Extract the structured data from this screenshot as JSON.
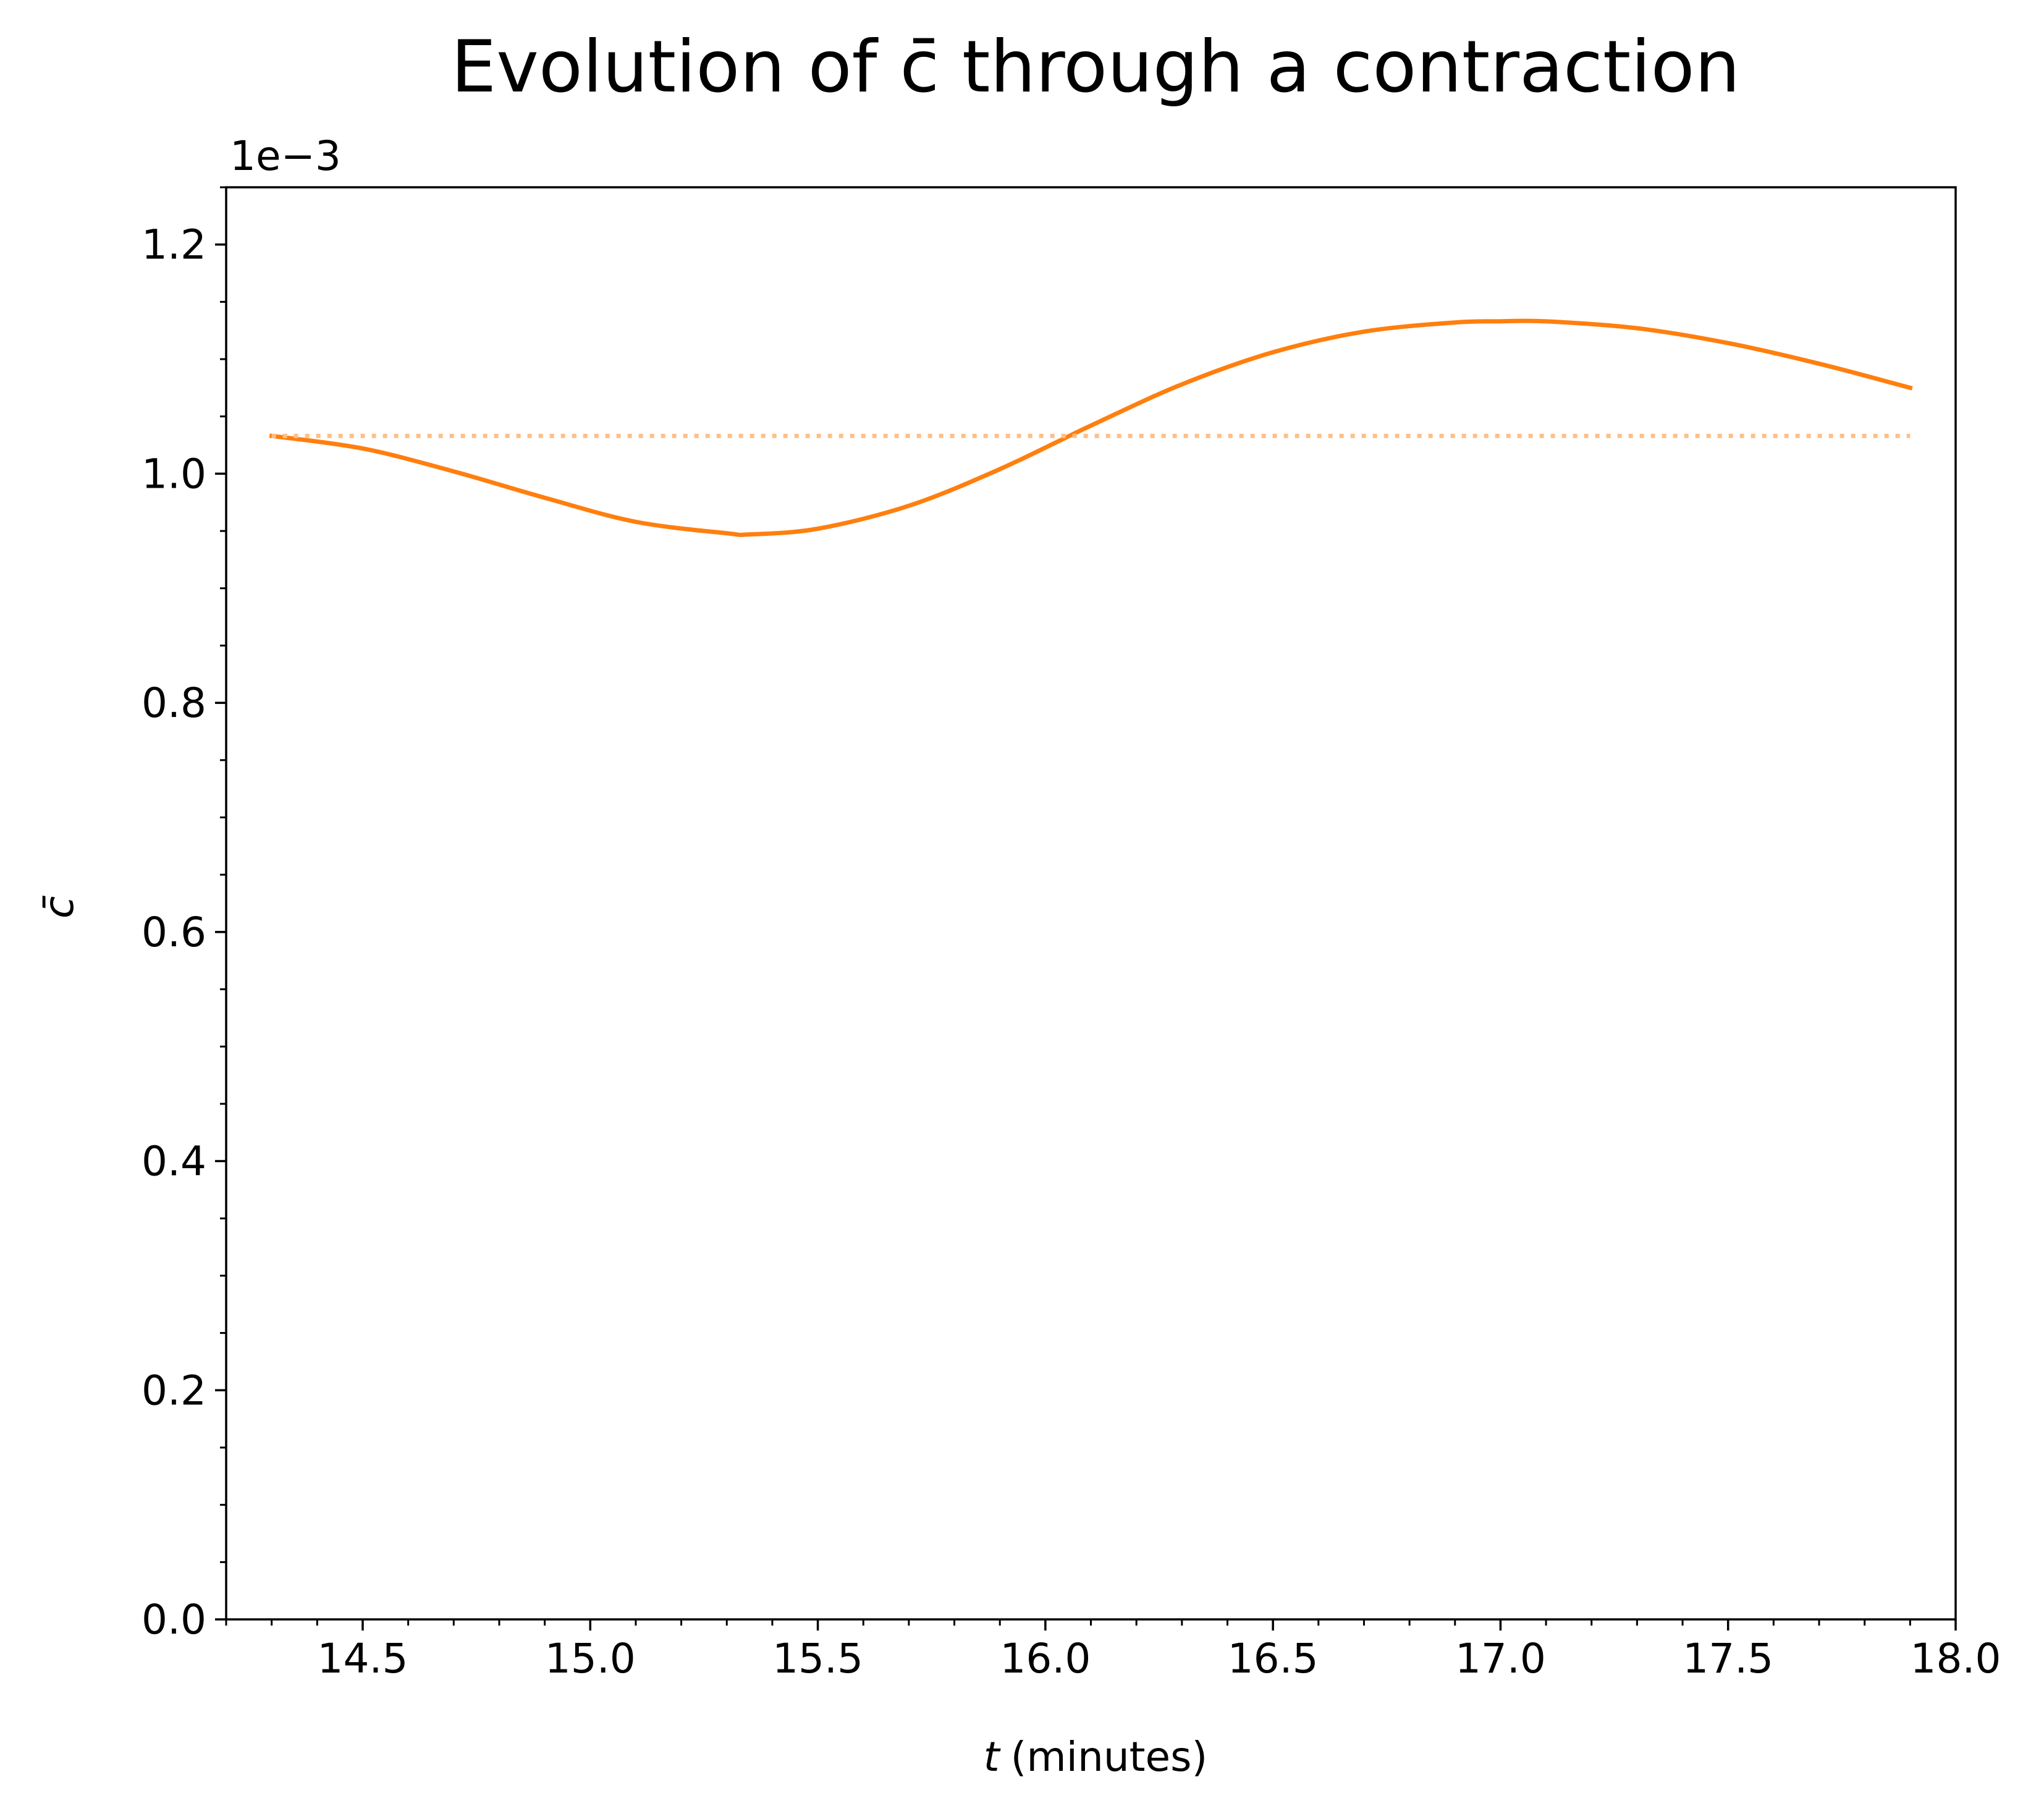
{
  "chart_data": {
    "type": "line",
    "title": "Evolution of c̄ through a contraction",
    "xlabel": "(minutes)",
    "xlabel_var": "t",
    "ylabel": "c̄",
    "y_offset_label": "1e−3",
    "xlim": [
      14.2,
      18.0
    ],
    "ylim": [
      0.0,
      1.25
    ],
    "x_ticks": [
      14.5,
      15.0,
      15.5,
      16.0,
      16.5,
      17.0,
      17.5,
      18.0
    ],
    "x_tick_labels": [
      "14.5",
      "15.0",
      "15.5",
      "16.0",
      "16.5",
      "17.0",
      "17.5",
      "18.0"
    ],
    "y_ticks": [
      0.0,
      0.2,
      0.4,
      0.6,
      0.8,
      1.0,
      1.2
    ],
    "y_tick_labels": [
      "0.0",
      "0.2",
      "0.4",
      "0.6",
      "0.8",
      "1.0",
      "1.2"
    ],
    "x_minor_step": 0.1,
    "y_minor_step": 0.05,
    "grid": false,
    "series": [
      {
        "style": "solid",
        "color": "#ff7f0e",
        "x": [
          14.3,
          14.5,
          14.7,
          14.9,
          15.1,
          15.3,
          15.35,
          15.5,
          15.7,
          15.9,
          16.1,
          16.3,
          16.5,
          16.7,
          16.9,
          17.0,
          17.1,
          17.3,
          17.5,
          17.7,
          17.9
        ],
        "y": [
          1.033,
          1.022,
          1.002,
          0.979,
          0.958,
          0.948,
          0.947,
          0.952,
          0.972,
          1.004,
          1.042,
          1.078,
          1.106,
          1.124,
          1.132,
          1.133,
          1.133,
          1.127,
          1.114,
          1.096,
          1.075
        ]
      },
      {
        "style": "dotted",
        "color": "#ffbf86",
        "x": [
          14.3,
          17.9
        ],
        "y": [
          1.033,
          1.033
        ]
      }
    ]
  }
}
